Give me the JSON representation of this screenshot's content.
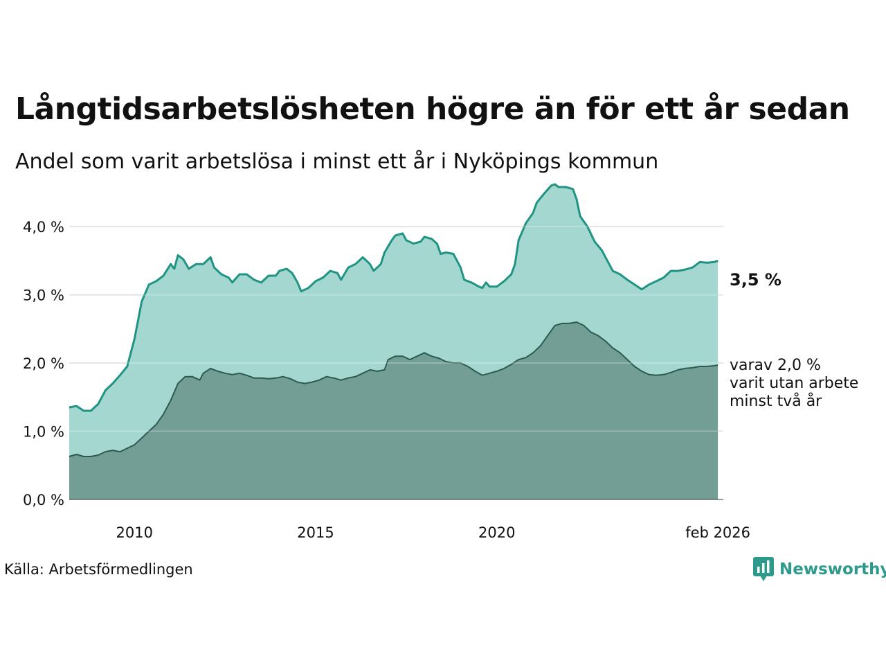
{
  "title": "Långtidsarbetslösheten högre än för ett år sedan",
  "subtitle": "Andel som varit arbetslösa i minst ett år i Nyköpings kommun",
  "source": "Källa: Arbetsförmedlingen",
  "brand": "Newsworthy",
  "colors": {
    "line1": "#1f9482",
    "fill1": "#a3d7d0",
    "line2": "#2d5a50",
    "fill2": "#729e96",
    "grid": "#dddddd",
    "brand": "#2e9a8c"
  },
  "chart_data": {
    "type": "area",
    "x_range": [
      2008.2,
      2026.25
    ],
    "ylim": [
      0,
      4.6
    ],
    "y_ticks": [
      0,
      1,
      2,
      3,
      4
    ],
    "y_tick_labels": [
      "0,0 %",
      "1,0 %",
      "2,0 %",
      "3,0 %",
      "4,0 %"
    ],
    "x_ticks": [
      2010,
      2015,
      2020,
      2026.1
    ],
    "x_tick_labels": [
      "2010",
      "2015",
      "2020",
      "feb 2026"
    ],
    "end_label": "3,5 %",
    "annotation": [
      "varav 2,0 %",
      "varit utan arbete",
      "minst två år"
    ],
    "series": [
      {
        "name": "Arbetslösa minst ett år",
        "points": [
          [
            2008.2,
            1.35
          ],
          [
            2008.4,
            1.37
          ],
          [
            2008.6,
            1.3
          ],
          [
            2008.8,
            1.3
          ],
          [
            2009.0,
            1.4
          ],
          [
            2009.2,
            1.6
          ],
          [
            2009.4,
            1.7
          ],
          [
            2009.6,
            1.82
          ],
          [
            2009.8,
            1.95
          ],
          [
            2010.0,
            2.35
          ],
          [
            2010.2,
            2.9
          ],
          [
            2010.4,
            3.15
          ],
          [
            2010.6,
            3.2
          ],
          [
            2010.8,
            3.28
          ],
          [
            2011.0,
            3.45
          ],
          [
            2011.1,
            3.38
          ],
          [
            2011.2,
            3.58
          ],
          [
            2011.35,
            3.52
          ],
          [
            2011.5,
            3.38
          ],
          [
            2011.7,
            3.45
          ],
          [
            2011.9,
            3.45
          ],
          [
            2012.1,
            3.55
          ],
          [
            2012.2,
            3.4
          ],
          [
            2012.4,
            3.3
          ],
          [
            2012.6,
            3.25
          ],
          [
            2012.7,
            3.18
          ],
          [
            2012.9,
            3.3
          ],
          [
            2013.1,
            3.3
          ],
          [
            2013.3,
            3.22
          ],
          [
            2013.5,
            3.18
          ],
          [
            2013.7,
            3.28
          ],
          [
            2013.9,
            3.28
          ],
          [
            2014.0,
            3.35
          ],
          [
            2014.2,
            3.38
          ],
          [
            2014.35,
            3.32
          ],
          [
            2014.5,
            3.18
          ],
          [
            2014.6,
            3.05
          ],
          [
            2014.8,
            3.1
          ],
          [
            2015.0,
            3.2
          ],
          [
            2015.2,
            3.25
          ],
          [
            2015.4,
            3.35
          ],
          [
            2015.6,
            3.32
          ],
          [
            2015.7,
            3.22
          ],
          [
            2015.9,
            3.4
          ],
          [
            2016.1,
            3.45
          ],
          [
            2016.3,
            3.55
          ],
          [
            2016.5,
            3.45
          ],
          [
            2016.6,
            3.35
          ],
          [
            2016.8,
            3.45
          ],
          [
            2016.9,
            3.62
          ],
          [
            2017.1,
            3.8
          ],
          [
            2017.2,
            3.87
          ],
          [
            2017.4,
            3.9
          ],
          [
            2017.5,
            3.8
          ],
          [
            2017.7,
            3.75
          ],
          [
            2017.9,
            3.78
          ],
          [
            2018.0,
            3.85
          ],
          [
            2018.2,
            3.82
          ],
          [
            2018.35,
            3.75
          ],
          [
            2018.45,
            3.6
          ],
          [
            2018.6,
            3.62
          ],
          [
            2018.8,
            3.6
          ],
          [
            2019.0,
            3.4
          ],
          [
            2019.1,
            3.22
          ],
          [
            2019.3,
            3.18
          ],
          [
            2019.5,
            3.12
          ],
          [
            2019.6,
            3.1
          ],
          [
            2019.7,
            3.18
          ],
          [
            2019.8,
            3.12
          ],
          [
            2020.0,
            3.12
          ],
          [
            2020.2,
            3.2
          ],
          [
            2020.4,
            3.3
          ],
          [
            2020.5,
            3.45
          ],
          [
            2020.6,
            3.8
          ],
          [
            2020.8,
            4.05
          ],
          [
            2021.0,
            4.2
          ],
          [
            2021.1,
            4.35
          ],
          [
            2021.3,
            4.48
          ],
          [
            2021.5,
            4.6
          ],
          [
            2021.6,
            4.62
          ],
          [
            2021.7,
            4.58
          ],
          [
            2021.9,
            4.58
          ],
          [
            2022.1,
            4.55
          ],
          [
            2022.2,
            4.4
          ],
          [
            2022.3,
            4.15
          ],
          [
            2022.5,
            4.0
          ],
          [
            2022.7,
            3.78
          ],
          [
            2022.9,
            3.65
          ],
          [
            2023.0,
            3.55
          ],
          [
            2023.2,
            3.35
          ],
          [
            2023.4,
            3.3
          ],
          [
            2023.6,
            3.22
          ],
          [
            2023.8,
            3.15
          ],
          [
            2024.0,
            3.08
          ],
          [
            2024.2,
            3.15
          ],
          [
            2024.4,
            3.2
          ],
          [
            2024.6,
            3.25
          ],
          [
            2024.8,
            3.35
          ],
          [
            2025.0,
            3.35
          ],
          [
            2025.2,
            3.37
          ],
          [
            2025.4,
            3.4
          ],
          [
            2025.6,
            3.48
          ],
          [
            2025.8,
            3.47
          ],
          [
            2026.0,
            3.48
          ],
          [
            2026.1,
            3.5
          ]
        ]
      },
      {
        "name": "varav utan arbete minst två år",
        "points": [
          [
            2008.2,
            0.63
          ],
          [
            2008.4,
            0.66
          ],
          [
            2008.6,
            0.63
          ],
          [
            2008.8,
            0.63
          ],
          [
            2009.0,
            0.65
          ],
          [
            2009.2,
            0.7
          ],
          [
            2009.4,
            0.72
          ],
          [
            2009.6,
            0.7
          ],
          [
            2009.8,
            0.75
          ],
          [
            2010.0,
            0.8
          ],
          [
            2010.2,
            0.9
          ],
          [
            2010.4,
            1.0
          ],
          [
            2010.6,
            1.1
          ],
          [
            2010.8,
            1.25
          ],
          [
            2011.0,
            1.45
          ],
          [
            2011.2,
            1.7
          ],
          [
            2011.4,
            1.8
          ],
          [
            2011.6,
            1.8
          ],
          [
            2011.8,
            1.75
          ],
          [
            2011.9,
            1.85
          ],
          [
            2012.1,
            1.92
          ],
          [
            2012.3,
            1.88
          ],
          [
            2012.5,
            1.85
          ],
          [
            2012.7,
            1.83
          ],
          [
            2012.9,
            1.85
          ],
          [
            2013.1,
            1.82
          ],
          [
            2013.3,
            1.78
          ],
          [
            2013.5,
            1.78
          ],
          [
            2013.7,
            1.77
          ],
          [
            2013.9,
            1.78
          ],
          [
            2014.1,
            1.8
          ],
          [
            2014.3,
            1.77
          ],
          [
            2014.5,
            1.72
          ],
          [
            2014.7,
            1.7
          ],
          [
            2014.9,
            1.72
          ],
          [
            2015.1,
            1.75
          ],
          [
            2015.3,
            1.8
          ],
          [
            2015.5,
            1.78
          ],
          [
            2015.7,
            1.75
          ],
          [
            2015.9,
            1.78
          ],
          [
            2016.1,
            1.8
          ],
          [
            2016.3,
            1.85
          ],
          [
            2016.5,
            1.9
          ],
          [
            2016.7,
            1.88
          ],
          [
            2016.9,
            1.9
          ],
          [
            2017.0,
            2.05
          ],
          [
            2017.2,
            2.1
          ],
          [
            2017.4,
            2.1
          ],
          [
            2017.6,
            2.05
          ],
          [
            2017.8,
            2.1
          ],
          [
            2018.0,
            2.15
          ],
          [
            2018.2,
            2.1
          ],
          [
            2018.4,
            2.07
          ],
          [
            2018.6,
            2.02
          ],
          [
            2018.8,
            2.0
          ],
          [
            2019.0,
            2.0
          ],
          [
            2019.2,
            1.95
          ],
          [
            2019.4,
            1.88
          ],
          [
            2019.6,
            1.82
          ],
          [
            2019.8,
            1.85
          ],
          [
            2020.0,
            1.88
          ],
          [
            2020.2,
            1.92
          ],
          [
            2020.4,
            1.98
          ],
          [
            2020.6,
            2.05
          ],
          [
            2020.8,
            2.08
          ],
          [
            2021.0,
            2.15
          ],
          [
            2021.2,
            2.25
          ],
          [
            2021.4,
            2.4
          ],
          [
            2021.6,
            2.55
          ],
          [
            2021.8,
            2.58
          ],
          [
            2022.0,
            2.58
          ],
          [
            2022.2,
            2.6
          ],
          [
            2022.4,
            2.55
          ],
          [
            2022.6,
            2.45
          ],
          [
            2022.8,
            2.4
          ],
          [
            2023.0,
            2.32
          ],
          [
            2023.2,
            2.22
          ],
          [
            2023.4,
            2.15
          ],
          [
            2023.6,
            2.05
          ],
          [
            2023.8,
            1.95
          ],
          [
            2024.0,
            1.88
          ],
          [
            2024.2,
            1.83
          ],
          [
            2024.4,
            1.82
          ],
          [
            2024.6,
            1.83
          ],
          [
            2024.8,
            1.86
          ],
          [
            2025.0,
            1.9
          ],
          [
            2025.2,
            1.92
          ],
          [
            2025.4,
            1.93
          ],
          [
            2025.6,
            1.95
          ],
          [
            2025.8,
            1.95
          ],
          [
            2026.0,
            1.96
          ],
          [
            2026.1,
            1.97
          ]
        ]
      }
    ]
  }
}
